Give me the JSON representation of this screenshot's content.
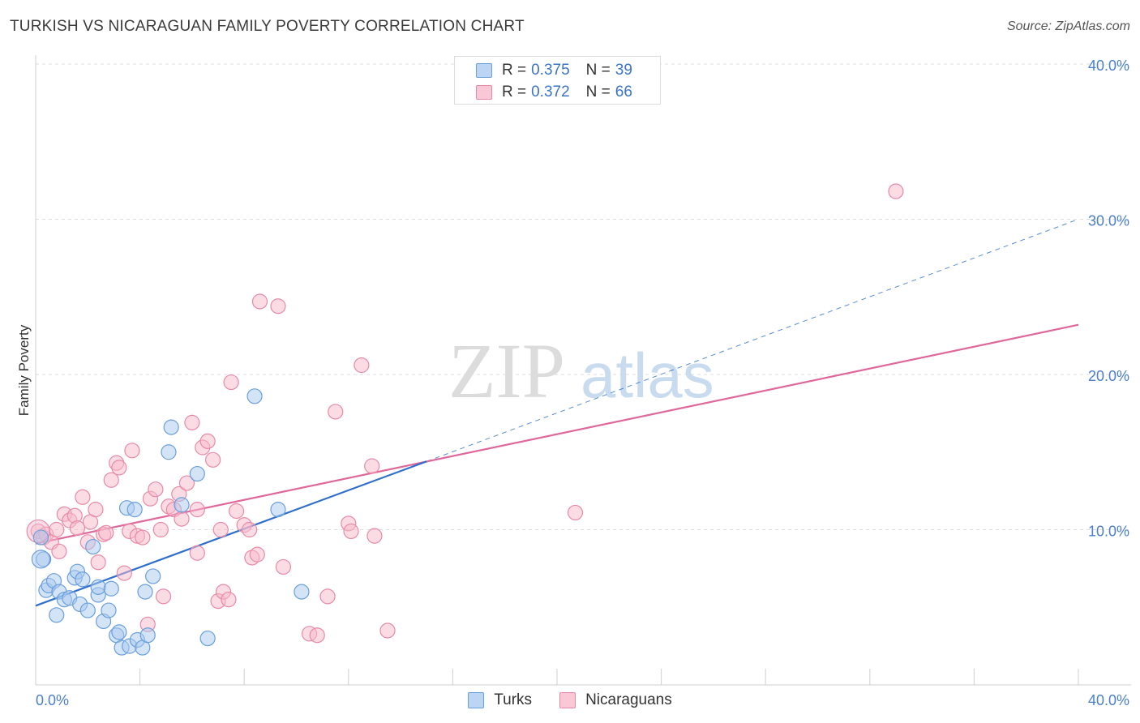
{
  "header": {
    "title": "TURKISH VS NICARAGUAN FAMILY POVERTY CORRELATION CHART",
    "source": "Source: ZipAtlas.com"
  },
  "watermark": {
    "zip": "ZIP",
    "atlas": "atlas"
  },
  "legend_top": [
    {
      "r_label": "R =",
      "r_value": "0.375",
      "n_label": "N =",
      "n_value": "39"
    },
    {
      "r_label": "R =",
      "r_value": "0.372",
      "n_label": "N =",
      "n_value": "66"
    }
  ],
  "legend_bottom": [
    {
      "label": "Turks"
    },
    {
      "label": "Nicaraguans"
    }
  ],
  "colors": {
    "turks_fill": "#a9c9f0",
    "turks_stroke": "#6a9fdc",
    "turks_line": "#2f6fcb",
    "nic_fill": "#f7b9cc",
    "nic_stroke": "#e88aa7",
    "nic_line": "#e0679a",
    "axis_text": "#4a7fcc",
    "grid": "#dddddd"
  },
  "chart_data": {
    "type": "scatter",
    "title": "TURKISH VS NICARAGUAN FAMILY POVERTY CORRELATION CHART",
    "xlabel": "",
    "ylabel": "Family Poverty",
    "xlim": [
      0,
      40
    ],
    "ylim": [
      0,
      40
    ],
    "x_tick_labels": [
      "0.0%",
      "40.0%"
    ],
    "y_ticks": [
      10,
      20,
      30,
      40
    ],
    "y_tick_labels": [
      "10.0%",
      "20.0%",
      "30.0%",
      "40.0%"
    ],
    "grid": true,
    "legend_position": "top-center",
    "series": [
      {
        "name": "Turks",
        "trend": {
          "x": [
            0,
            15
          ],
          "y": [
            5.1,
            14.4
          ],
          "extend_to": [
            40,
            30.0
          ]
        },
        "points": [
          [
            0.2,
            9.5
          ],
          [
            0.3,
            8.1
          ],
          [
            0.4,
            6.1
          ],
          [
            0.5,
            6.4
          ],
          [
            0.7,
            6.7
          ],
          [
            0.8,
            4.5
          ],
          [
            0.9,
            6.0
          ],
          [
            1.1,
            5.5
          ],
          [
            1.3,
            5.6
          ],
          [
            1.5,
            6.9
          ],
          [
            1.6,
            7.3
          ],
          [
            1.7,
            5.2
          ],
          [
            1.8,
            6.8
          ],
          [
            2.0,
            4.8
          ],
          [
            2.2,
            8.9
          ],
          [
            2.4,
            5.8
          ],
          [
            2.4,
            6.3
          ],
          [
            2.6,
            4.1
          ],
          [
            2.8,
            4.8
          ],
          [
            2.9,
            6.2
          ],
          [
            3.1,
            3.2
          ],
          [
            3.2,
            3.4
          ],
          [
            3.3,
            2.4
          ],
          [
            3.5,
            11.4
          ],
          [
            3.6,
            2.5
          ],
          [
            3.8,
            11.3
          ],
          [
            3.9,
            2.9
          ],
          [
            4.1,
            2.4
          ],
          [
            4.2,
            6.0
          ],
          [
            4.3,
            3.2
          ],
          [
            4.5,
            7.0
          ],
          [
            5.1,
            15.0
          ],
          [
            5.2,
            16.6
          ],
          [
            5.6,
            11.6
          ],
          [
            6.2,
            13.6
          ],
          [
            6.6,
            3.0
          ],
          [
            8.4,
            18.6
          ],
          [
            9.3,
            11.3
          ],
          [
            10.2,
            6.0
          ]
        ]
      },
      {
        "name": "Nicaraguans",
        "trend": {
          "x": [
            0,
            40
          ],
          "y": [
            9.1,
            23.2
          ]
        },
        "points": [
          [
            0.1,
            9.9
          ],
          [
            0.3,
            9.5
          ],
          [
            0.4,
            9.7
          ],
          [
            0.6,
            9.2
          ],
          [
            0.8,
            10.0
          ],
          [
            0.9,
            8.6
          ],
          [
            1.1,
            11.0
          ],
          [
            1.3,
            10.6
          ],
          [
            1.5,
            10.9
          ],
          [
            1.6,
            10.1
          ],
          [
            1.8,
            12.1
          ],
          [
            2.0,
            9.2
          ],
          [
            2.1,
            10.5
          ],
          [
            2.3,
            11.3
          ],
          [
            2.4,
            7.9
          ],
          [
            2.6,
            9.7
          ],
          [
            2.7,
            9.8
          ],
          [
            2.9,
            13.2
          ],
          [
            3.1,
            14.3
          ],
          [
            3.2,
            14.0
          ],
          [
            3.4,
            7.2
          ],
          [
            3.6,
            9.9
          ],
          [
            3.7,
            15.1
          ],
          [
            3.9,
            9.6
          ],
          [
            4.1,
            9.5
          ],
          [
            4.3,
            3.9
          ],
          [
            4.4,
            12.0
          ],
          [
            4.6,
            12.6
          ],
          [
            4.8,
            10.0
          ],
          [
            4.9,
            5.7
          ],
          [
            5.1,
            11.5
          ],
          [
            5.3,
            11.3
          ],
          [
            5.5,
            12.3
          ],
          [
            5.6,
            10.7
          ],
          [
            5.8,
            13.0
          ],
          [
            6.0,
            16.9
          ],
          [
            6.2,
            8.5
          ],
          [
            6.2,
            11.3
          ],
          [
            6.4,
            15.3
          ],
          [
            6.6,
            15.7
          ],
          [
            6.8,
            14.5
          ],
          [
            7.0,
            5.4
          ],
          [
            7.1,
            10.0
          ],
          [
            7.2,
            6.0
          ],
          [
            7.4,
            5.5
          ],
          [
            7.5,
            19.5
          ],
          [
            7.7,
            11.2
          ],
          [
            8.0,
            10.3
          ],
          [
            8.2,
            10.0
          ],
          [
            8.3,
            8.2
          ],
          [
            8.5,
            8.4
          ],
          [
            8.6,
            24.7
          ],
          [
            9.3,
            24.4
          ],
          [
            9.5,
            7.6
          ],
          [
            10.5,
            3.3
          ],
          [
            10.8,
            3.2
          ],
          [
            11.2,
            5.7
          ],
          [
            11.5,
            17.6
          ],
          [
            12.0,
            10.4
          ],
          [
            12.1,
            9.9
          ],
          [
            12.5,
            20.6
          ],
          [
            12.9,
            14.1
          ],
          [
            13.0,
            9.6
          ],
          [
            13.5,
            3.5
          ],
          [
            20.7,
            11.1
          ],
          [
            33.0,
            31.8
          ]
        ]
      }
    ]
  }
}
